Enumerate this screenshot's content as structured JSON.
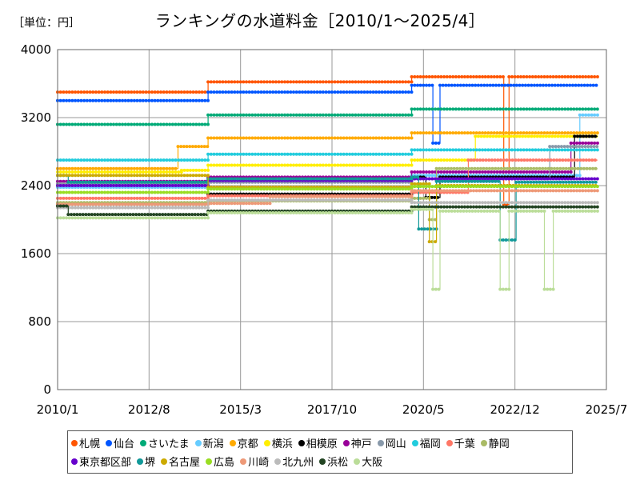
{
  "unit_label": "［単位：円］",
  "chart_data": {
    "type": "line",
    "title": "ランキングの水道料金［2010/1～2025/4］",
    "xlabel": "",
    "ylabel": "円",
    "xlim": [
      2010.0,
      2025.5
    ],
    "ylim": [
      0,
      4000
    ],
    "yticks": [
      0,
      800,
      1600,
      2400,
      3200,
      4000
    ],
    "xticks": [
      {
        "label": "2010/1",
        "value": 2010.0
      },
      {
        "label": "2012/8",
        "value": 2012.583
      },
      {
        "label": "2015/3",
        "value": 2015.167
      },
      {
        "label": "2017/10",
        "value": 2017.75
      },
      {
        "label": "2020/5",
        "value": 2020.333
      },
      {
        "label": "2022/12",
        "value": 2022.917
      },
      {
        "label": "2025/7",
        "value": 2025.5
      }
    ],
    "grid": true,
    "legend_position": "bottom",
    "series": [
      {
        "name": "札幌",
        "color": "#ff5500",
        "points": [
          [
            2010.0,
            3500
          ],
          [
            2014.25,
            3500
          ],
          [
            2014.25,
            3620
          ],
          [
            2020.0,
            3620
          ],
          [
            2020.0,
            3680
          ],
          [
            2022.6,
            3680
          ],
          [
            2022.6,
            2180
          ],
          [
            2022.75,
            2180
          ],
          [
            2022.75,
            3680
          ],
          [
            2025.25,
            3680
          ]
        ]
      },
      {
        "name": "仙台",
        "color": "#0055ff",
        "points": [
          [
            2010.0,
            3400
          ],
          [
            2014.25,
            3400
          ],
          [
            2014.25,
            3500
          ],
          [
            2020.0,
            3500
          ],
          [
            2020.0,
            3580
          ],
          [
            2020.6,
            3580
          ],
          [
            2020.6,
            2900
          ],
          [
            2020.8,
            2900
          ],
          [
            2020.8,
            3580
          ],
          [
            2025.25,
            3580
          ]
        ]
      },
      {
        "name": "さいたま",
        "color": "#00aa77",
        "points": [
          [
            2010.0,
            3120
          ],
          [
            2014.25,
            3120
          ],
          [
            2014.25,
            3230
          ],
          [
            2020.0,
            3230
          ],
          [
            2020.0,
            3300
          ],
          [
            2025.25,
            3300
          ]
        ]
      },
      {
        "name": "新潟",
        "color": "#66ccff",
        "points": [
          [
            2010.0,
            2380
          ],
          [
            2014.25,
            2380
          ],
          [
            2014.25,
            2450
          ],
          [
            2020.0,
            2450
          ],
          [
            2020.0,
            2520
          ],
          [
            2024.75,
            2520
          ],
          [
            2024.75,
            3230
          ],
          [
            2025.25,
            3230
          ]
        ]
      },
      {
        "name": "京都",
        "color": "#ffaa00",
        "points": [
          [
            2010.0,
            2600
          ],
          [
            2013.4,
            2600
          ],
          [
            2013.4,
            2860
          ],
          [
            2014.25,
            2860
          ],
          [
            2014.25,
            2960
          ],
          [
            2020.0,
            2960
          ],
          [
            2020.0,
            3020
          ],
          [
            2025.25,
            3020
          ]
        ]
      },
      {
        "name": "横浜",
        "color": "#ffee00",
        "points": [
          [
            2010.0,
            2560
          ],
          [
            2013.5,
            2560
          ],
          [
            2013.5,
            2580
          ],
          [
            2014.25,
            2580
          ],
          [
            2014.25,
            2640
          ],
          [
            2020.0,
            2640
          ],
          [
            2020.0,
            2700
          ],
          [
            2021.8,
            2700
          ],
          [
            2021.8,
            2980
          ],
          [
            2025.25,
            2980
          ]
        ]
      },
      {
        "name": "相模原",
        "color": "#000000",
        "points": [
          [
            2010.0,
            2180
          ],
          [
            2014.25,
            2180
          ],
          [
            2014.25,
            2300
          ],
          [
            2020.0,
            2300
          ],
          [
            2020.0,
            2500
          ],
          [
            2020.4,
            2500
          ],
          [
            2020.4,
            2260
          ],
          [
            2020.8,
            2260
          ],
          [
            2020.8,
            2500
          ],
          [
            2024.6,
            2500
          ],
          [
            2024.6,
            2980
          ],
          [
            2025.25,
            2980
          ]
        ]
      },
      {
        "name": "神戸",
        "color": "#990099",
        "points": [
          [
            2010.0,
            2450
          ],
          [
            2014.25,
            2450
          ],
          [
            2014.25,
            2500
          ],
          [
            2020.0,
            2500
          ],
          [
            2020.0,
            2560
          ],
          [
            2024.5,
            2560
          ],
          [
            2024.5,
            2900
          ],
          [
            2025.25,
            2900
          ]
        ]
      },
      {
        "name": "岡山",
        "color": "#8899aa",
        "points": [
          [
            2010.0,
            2420
          ],
          [
            2014.25,
            2420
          ],
          [
            2014.25,
            2440
          ],
          [
            2020.0,
            2440
          ],
          [
            2020.0,
            2480
          ],
          [
            2023.9,
            2480
          ],
          [
            2023.9,
            2860
          ],
          [
            2025.25,
            2860
          ]
        ]
      },
      {
        "name": "福岡",
        "color": "#22ccdd",
        "points": [
          [
            2010.0,
            2700
          ],
          [
            2014.25,
            2700
          ],
          [
            2014.25,
            2770
          ],
          [
            2020.0,
            2770
          ],
          [
            2020.0,
            2820
          ],
          [
            2025.25,
            2820
          ]
        ]
      },
      {
        "name": "千葉",
        "color": "#ff7766",
        "points": [
          [
            2010.0,
            2250
          ],
          [
            2014.25,
            2250
          ],
          [
            2014.25,
            2280
          ],
          [
            2020.0,
            2280
          ],
          [
            2020.0,
            2320
          ],
          [
            2021.6,
            2320
          ],
          [
            2021.6,
            2700
          ],
          [
            2025.25,
            2700
          ]
        ]
      },
      {
        "name": "静岡",
        "color": "#aabb66",
        "points": [
          [
            2010.0,
            2200
          ],
          [
            2014.25,
            2200
          ],
          [
            2014.25,
            2220
          ],
          [
            2020.0,
            2220
          ],
          [
            2020.0,
            2250
          ],
          [
            2020.5,
            2250
          ],
          [
            2020.5,
            2000
          ],
          [
            2020.7,
            2000
          ],
          [
            2020.7,
            2600
          ],
          [
            2025.25,
            2600
          ]
        ]
      },
      {
        "name": "東京都区部",
        "color": "#6600cc",
        "points": [
          [
            2010.0,
            2400
          ],
          [
            2014.25,
            2400
          ],
          [
            2014.25,
            2460
          ],
          [
            2020.0,
            2460
          ],
          [
            2020.0,
            2480
          ],
          [
            2025.25,
            2480
          ]
        ]
      },
      {
        "name": "堺",
        "color": "#119999",
        "points": [
          [
            2010.0,
            2520
          ],
          [
            2010.3,
            2520
          ],
          [
            2010.3,
            2440
          ],
          [
            2014.25,
            2440
          ],
          [
            2014.25,
            2480
          ],
          [
            2020.0,
            2480
          ],
          [
            2020.0,
            2500
          ],
          [
            2020.2,
            2500
          ],
          [
            2020.2,
            1890
          ],
          [
            2020.7,
            1890
          ],
          [
            2020.7,
            2450
          ],
          [
            2022.5,
            2450
          ],
          [
            2022.5,
            1760
          ],
          [
            2022.95,
            1760
          ],
          [
            2022.95,
            2440
          ],
          [
            2025.25,
            2440
          ]
        ]
      },
      {
        "name": "名古屋",
        "color": "#ccaa00",
        "points": [
          [
            2010.0,
            2520
          ],
          [
            2014.25,
            2520
          ],
          [
            2014.25,
            2380
          ],
          [
            2020.0,
            2380
          ],
          [
            2020.0,
            2420
          ],
          [
            2020.5,
            2420
          ],
          [
            2020.5,
            1740
          ],
          [
            2020.7,
            1740
          ],
          [
            2020.7,
            2400
          ],
          [
            2025.25,
            2400
          ]
        ]
      },
      {
        "name": "広島",
        "color": "#99dd22",
        "points": [
          [
            2010.0,
            2320
          ],
          [
            2014.25,
            2320
          ],
          [
            2014.25,
            2360
          ],
          [
            2020.0,
            2360
          ],
          [
            2020.0,
            2390
          ],
          [
            2025.25,
            2390
          ]
        ]
      },
      {
        "name": "川崎",
        "color": "#ee9977",
        "points": [
          [
            2010.0,
            2180
          ],
          [
            2014.25,
            2180
          ],
          [
            2014.25,
            2190
          ],
          [
            2016.0,
            2190
          ],
          [
            2016.0,
            2270
          ],
          [
            2020.0,
            2270
          ],
          [
            2020.0,
            2340
          ],
          [
            2025.25,
            2340
          ]
        ]
      },
      {
        "name": "北九州",
        "color": "#bbbbbb",
        "points": [
          [
            2010.0,
            2140
          ],
          [
            2014.25,
            2140
          ],
          [
            2014.25,
            2230
          ],
          [
            2020.0,
            2230
          ],
          [
            2020.0,
            2200
          ],
          [
            2025.25,
            2200
          ]
        ]
      },
      {
        "name": "浜松",
        "color": "#224422",
        "points": [
          [
            2010.0,
            2160
          ],
          [
            2010.3,
            2160
          ],
          [
            2010.3,
            2060
          ],
          [
            2014.25,
            2060
          ],
          [
            2014.25,
            2100
          ],
          [
            2020.0,
            2100
          ],
          [
            2020.0,
            2150
          ],
          [
            2025.25,
            2150
          ]
        ]
      },
      {
        "name": "大阪",
        "color": "#bbdd99",
        "points": [
          [
            2010.0,
            2020
          ],
          [
            2014.25,
            2020
          ],
          [
            2014.25,
            2080
          ],
          [
            2020.0,
            2080
          ],
          [
            2020.0,
            2120
          ],
          [
            2020.6,
            2120
          ],
          [
            2020.6,
            1180
          ],
          [
            2020.8,
            1180
          ],
          [
            2020.8,
            2100
          ],
          [
            2022.5,
            2100
          ],
          [
            2022.5,
            1180
          ],
          [
            2022.75,
            1180
          ],
          [
            2022.75,
            2100
          ],
          [
            2023.75,
            2100
          ],
          [
            2023.75,
            1180
          ],
          [
            2024.0,
            1180
          ],
          [
            2024.0,
            2100
          ],
          [
            2025.25,
            2100
          ]
        ]
      }
    ]
  }
}
